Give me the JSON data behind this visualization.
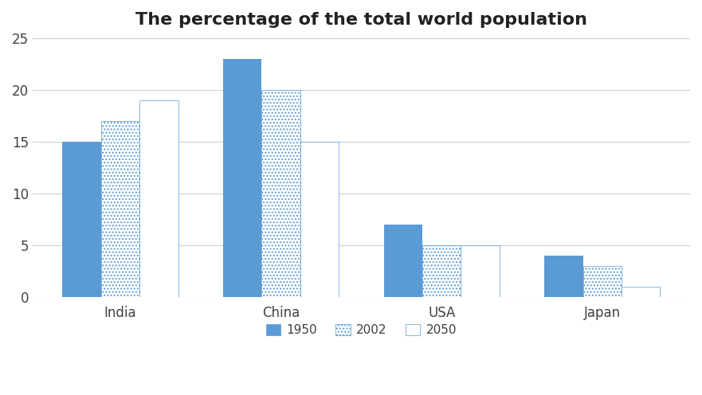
{
  "title": "The percentage of the total world population",
  "categories": [
    "India",
    "China",
    "USA",
    "Japan"
  ],
  "years": [
    "1950",
    "2002",
    "2050"
  ],
  "values": {
    "1950": [
      15,
      23,
      7,
      4
    ],
    "2002": [
      17,
      20,
      5,
      3
    ],
    "2050": [
      19,
      15,
      5,
      1
    ]
  },
  "bar_color_1950": "#5B9BD5",
  "bar_color_2002_face": "white",
  "bar_color_2002_edge": "#5B9BD5",
  "bar_color_2050_face": "white",
  "bar_color_2050_edge": "#5B9BD5",
  "ylim": [
    0,
    25
  ],
  "yticks": [
    0,
    5,
    10,
    15,
    20,
    25
  ],
  "bar_width": 0.24,
  "background_color": "#ffffff",
  "legend_labels": [
    "1950",
    "2002",
    "2050"
  ],
  "title_fontsize": 16,
  "axis_label_fontsize": 12,
  "legend_fontsize": 11,
  "grid_color": "#d0d0d0",
  "text_color": "#404040"
}
